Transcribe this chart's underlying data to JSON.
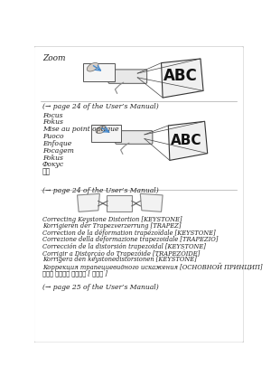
{
  "title": "Zoom",
  "bg_color": "#ffffff",
  "border_color": "#cccccc",
  "section1_ref": "(→ page 24 of the User’s Manual)",
  "section2_ref": "(→ page 24 of the User’s Manual)",
  "section3_ref": "(→ page 25 of the User’s Manual)",
  "focus_labels": [
    "Focus",
    "Fokus",
    "Mise au point optique",
    "Fuoco",
    "Enfoque",
    "Focagem",
    "Fokus",
    "Фокус",
    "초점"
  ],
  "keystone_labels": [
    "Correcting Keystone Distortion [KEYSTONE]",
    "Korrigieren der Trapezverzerrung [TRAPEZ]",
    "Correction de la déformation trapézoïdale [KEYSTONE]",
    "Correzione della deformazione trapezoidale [TRAPEZIO]",
    "Corrección de la distorsión trapezoidal [KEYSTONE]",
    "Corrigir a Distorção do Trapezóide [TRAPEZÓIDE]",
    "Korrigera den keystonedistorsionen [KEYSTONE]",
    "Коррекция трапециевидного искажения [ОСНОВНОЙ ПРИНЦИП]",
    "키스톤 일그러짔 바로잡기 [ 키스톤 ]"
  ],
  "text_color": "#222222",
  "line_color": "#aaaaaa",
  "abc_color": "#111111",
  "blue_arrow_color": "#4488cc"
}
